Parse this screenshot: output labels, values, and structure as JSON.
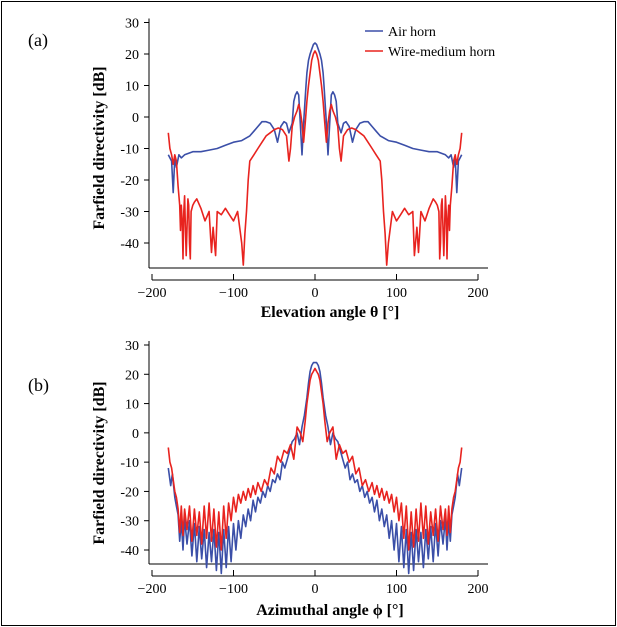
{
  "figure": {
    "frame": true
  },
  "chart_data": [
    {
      "type": "line",
      "panel_label": "(a)",
      "xlabel": "Elevation angle θ [°]",
      "ylabel": "Farfield directivity [dB]",
      "xlim": [
        -200,
        200
      ],
      "ylim": [
        -48,
        30
      ],
      "xticks": [
        -200,
        -100,
        0,
        100,
        200
      ],
      "yticks": [
        30,
        20,
        10,
        0,
        -10,
        -20,
        -30,
        -40
      ],
      "grid": false,
      "legend": {
        "position": "top-right"
      },
      "series": [
        {
          "name": "Air horn",
          "color": "#3b4fa8",
          "x": [
            -180,
            -176,
            -174,
            -172,
            -170,
            -167,
            -164,
            -160,
            -150,
            -140,
            -130,
            -120,
            -110,
            -100,
            -90,
            -80,
            -75,
            -70,
            -65,
            -60,
            -55,
            -50,
            -46,
            -42,
            -38,
            -35,
            -32,
            -28,
            -26,
            -24,
            -22,
            -20,
            -18,
            -16,
            -14,
            -13,
            -12,
            -11,
            -10,
            -8,
            -6,
            -4,
            -2,
            0,
            2,
            4,
            6,
            8,
            10,
            11,
            12,
            13,
            14,
            16,
            18,
            20,
            22,
            24,
            26,
            28,
            32,
            35,
            38,
            42,
            46,
            50,
            55,
            60,
            65,
            70,
            75,
            80,
            90,
            100,
            110,
            120,
            130,
            140,
            150,
            160,
            164,
            167,
            170,
            172,
            174,
            176,
            180
          ],
          "y": [
            -12,
            -14,
            -24,
            -13,
            -16,
            -12,
            -13,
            -12,
            -11,
            -11,
            -10.5,
            -10,
            -9,
            -8,
            -7.5,
            -6,
            -4.5,
            -3,
            -1.5,
            -1.5,
            -2,
            -4,
            -8,
            -3,
            -1.5,
            -2,
            -5,
            -2,
            5,
            7,
            8,
            7,
            -2,
            -12,
            -2,
            2,
            6,
            10,
            14,
            18,
            20,
            21.5,
            23,
            23.5,
            23,
            21.5,
            20,
            18,
            14,
            10,
            6,
            2,
            -2,
            -12,
            -2,
            7,
            8,
            7,
            5,
            -2,
            -5,
            -2,
            -1.5,
            -3,
            -8,
            -4,
            -2,
            -1.5,
            -1.5,
            -3,
            -4.5,
            -6,
            -7.5,
            -8,
            -9,
            -10,
            -10.5,
            -11,
            -11,
            -12,
            -13,
            -12,
            -16,
            -13,
            -24,
            -14,
            -12
          ]
        },
        {
          "name": "Wire-medium horn",
          "color": "#e8231f",
          "x": [
            -180,
            -178,
            -176,
            -174,
            -172,
            -170,
            -168,
            -166,
            -165,
            -164,
            -163,
            -162,
            -161,
            -160,
            -159,
            -158,
            -156,
            -155,
            -154,
            -153,
            -152,
            -150,
            -148,
            -145,
            -140,
            -135,
            -130,
            -127,
            -125,
            -122,
            -120,
            -115,
            -110,
            -105,
            -100,
            -95,
            -90,
            -88,
            -86,
            -84,
            -82,
            -80,
            -75,
            -70,
            -65,
            -60,
            -55,
            -50,
            -45,
            -40,
            -35,
            -32,
            -30,
            -28,
            -25,
            -22,
            -20,
            -18,
            -16,
            -14,
            -12,
            -10,
            -8,
            -6,
            -4,
            -2,
            0,
            2,
            4,
            6,
            8,
            10,
            12,
            14,
            16,
            18,
            20,
            22,
            25,
            28,
            30,
            32,
            35,
            40,
            45,
            50,
            55,
            60,
            65,
            70,
            75,
            80,
            82,
            84,
            86,
            88,
            90,
            95,
            100,
            105,
            110,
            115,
            120,
            122,
            125,
            127,
            130,
            135,
            140,
            145,
            148,
            150,
            152,
            153,
            154,
            155,
            156,
            158,
            159,
            160,
            161,
            162,
            163,
            164,
            165,
            166,
            168,
            170,
            172,
            174,
            176,
            178,
            180
          ],
          "y": [
            -5,
            -10,
            -12,
            -15,
            -12,
            -14,
            -22,
            -28,
            -36,
            -28,
            -33,
            -45,
            -30,
            -25,
            -35,
            -44,
            -26,
            -28,
            -40,
            -45,
            -30,
            -28,
            -27,
            -26,
            -29,
            -33,
            -30,
            -43,
            -35,
            -44,
            -30,
            -31,
            -29,
            -31,
            -33,
            -30,
            -40,
            -47,
            -37,
            -30,
            -20,
            -14,
            -12,
            -10,
            -8,
            -6,
            -5,
            -4,
            -3.5,
            -4,
            -6,
            -14,
            -10,
            -3,
            0,
            2,
            4,
            2,
            -2,
            -8,
            -2,
            5,
            10,
            14,
            18,
            20,
            21,
            20,
            18,
            14,
            10,
            5,
            -2,
            -8,
            -2,
            2,
            4,
            2,
            0,
            -3,
            -10,
            -14,
            -6,
            -4,
            -3.5,
            -4,
            -5,
            -6,
            -8,
            -10,
            -12,
            -14,
            -20,
            -30,
            -37,
            -47,
            -40,
            -30,
            -33,
            -31,
            -29,
            -31,
            -30,
            -44,
            -35,
            -43,
            -30,
            -33,
            -29,
            -26,
            -27,
            -28,
            -30,
            -45,
            -40,
            -28,
            -26,
            -44,
            -35,
            -25,
            -30,
            -45,
            -33,
            -28,
            -36,
            -28,
            -22,
            -14,
            -12,
            -15,
            -12,
            -10,
            -5
          ]
        }
      ]
    },
    {
      "type": "line",
      "panel_label": "(b)",
      "xlabel": "Azimuthal angle ϕ [°]",
      "ylabel": "Farfield directivity [dB]",
      "xlim": [
        -200,
        200
      ],
      "ylim": [
        -48,
        30
      ],
      "xticks": [
        -200,
        -100,
        0,
        100,
        200
      ],
      "yticks": [
        30,
        20,
        10,
        0,
        -10,
        -20,
        -30,
        -40
      ],
      "grid": false,
      "series": [
        {
          "name": "Air horn",
          "color": "#3b4fa8",
          "x": [
            -180,
            -177,
            -175,
            -172,
            -170,
            -168,
            -166,
            -164,
            -162,
            -160,
            -157,
            -154,
            -151,
            -148,
            -145,
            -142,
            -139,
            -136,
            -133,
            -130,
            -127,
            -124,
            -121,
            -118,
            -115,
            -112,
            -109,
            -106,
            -103,
            -100,
            -97,
            -94,
            -91,
            -88,
            -85,
            -82,
            -79,
            -76,
            -73,
            -70,
            -67,
            -64,
            -61,
            -58,
            -55,
            -52,
            -49,
            -46,
            -43,
            -40,
            -37,
            -34,
            -31,
            -28,
            -25,
            -22,
            -19,
            -16,
            -13,
            -10,
            -8,
            -6,
            -4,
            -2,
            0,
            2,
            4,
            6,
            8,
            10,
            13,
            16,
            19,
            22,
            25,
            28,
            31,
            34,
            37,
            40,
            43,
            46,
            49,
            52,
            55,
            58,
            61,
            64,
            67,
            70,
            73,
            76,
            79,
            82,
            85,
            88,
            91,
            94,
            97,
            100,
            103,
            106,
            109,
            112,
            115,
            118,
            121,
            124,
            127,
            130,
            133,
            136,
            139,
            142,
            145,
            148,
            151,
            154,
            157,
            160,
            162,
            164,
            166,
            168,
            170,
            172,
            175,
            177,
            180
          ],
          "y": [
            -12,
            -18,
            -14,
            -22,
            -25,
            -28,
            -37,
            -30,
            -40,
            -29,
            -38,
            -30,
            -42,
            -31,
            -44,
            -32,
            -43,
            -33,
            -46,
            -34,
            -44,
            -33,
            -47,
            -34,
            -48,
            -33,
            -46,
            -32,
            -44,
            -31,
            -40,
            -30,
            -36,
            -28,
            -32,
            -26,
            -30,
            -23,
            -27,
            -22,
            -24,
            -20,
            -22,
            -18,
            -20,
            -16,
            -17,
            -14,
            -16,
            -10,
            -12,
            -9,
            -6,
            -3,
            -2,
            0,
            -4,
            2,
            6,
            12,
            17,
            21,
            23,
            24,
            24,
            24,
            23,
            21,
            17,
            12,
            6,
            2,
            -4,
            0,
            -2,
            -3,
            -6,
            -9,
            -12,
            -10,
            -16,
            -14,
            -17,
            -16,
            -20,
            -18,
            -22,
            -20,
            -24,
            -22,
            -27,
            -23,
            -30,
            -26,
            -32,
            -28,
            -36,
            -30,
            -40,
            -31,
            -44,
            -32,
            -46,
            -33,
            -48,
            -34,
            -47,
            -33,
            -44,
            -34,
            -46,
            -33,
            -43,
            -32,
            -44,
            -31,
            -42,
            -30,
            -38,
            -29,
            -40,
            -30,
            -37,
            -28,
            -25,
            -22,
            -14,
            -18,
            -12
          ]
        },
        {
          "name": "Wire-medium horn",
          "color": "#e8231f",
          "x": [
            -180,
            -178,
            -176,
            -174,
            -172,
            -170,
            -168,
            -166,
            -164,
            -162,
            -160,
            -157,
            -154,
            -151,
            -148,
            -145,
            -142,
            -139,
            -136,
            -133,
            -130,
            -127,
            -124,
            -121,
            -118,
            -115,
            -112,
            -109,
            -106,
            -103,
            -100,
            -97,
            -94,
            -91,
            -88,
            -85,
            -82,
            -79,
            -76,
            -73,
            -70,
            -66,
            -62,
            -58,
            -54,
            -50,
            -46,
            -42,
            -38,
            -34,
            -30,
            -26,
            -22,
            -18,
            -15,
            -12,
            -10,
            -8,
            -6,
            -4,
            -2,
            0,
            2,
            4,
            6,
            8,
            10,
            12,
            15,
            18,
            22,
            26,
            30,
            34,
            38,
            42,
            46,
            50,
            54,
            58,
            62,
            66,
            70,
            73,
            76,
            79,
            82,
            85,
            88,
            91,
            94,
            97,
            100,
            103,
            106,
            109,
            112,
            115,
            118,
            121,
            124,
            127,
            130,
            133,
            136,
            139,
            142,
            145,
            148,
            151,
            154,
            157,
            160,
            162,
            164,
            166,
            168,
            170,
            172,
            174,
            176,
            178,
            180
          ],
          "y": [
            -5,
            -10,
            -12,
            -16,
            -20,
            -22,
            -26,
            -34,
            -25,
            -35,
            -26,
            -33,
            -25,
            -37,
            -26,
            -35,
            -27,
            -38,
            -25,
            -36,
            -24,
            -37,
            -26,
            -39,
            -27,
            -40,
            -25,
            -36,
            -24,
            -30,
            -22,
            -27,
            -21,
            -24,
            -20,
            -23,
            -19,
            -22,
            -18,
            -21,
            -17,
            -20,
            -16,
            -18,
            -12,
            -14,
            -8,
            -10,
            -6,
            -7,
            -4,
            -9,
            2,
            0,
            -3,
            4,
            10,
            14,
            18,
            20,
            21,
            22,
            21,
            20,
            18,
            14,
            10,
            4,
            -3,
            0,
            2,
            -9,
            -4,
            -7,
            -6,
            -10,
            -8,
            -14,
            -12,
            -18,
            -16,
            -20,
            -17,
            -21,
            -18,
            -22,
            -19,
            -23,
            -20,
            -24,
            -21,
            -27,
            -22,
            -30,
            -24,
            -36,
            -25,
            -40,
            -27,
            -39,
            -26,
            -37,
            -24,
            -36,
            -25,
            -38,
            -27,
            -35,
            -26,
            -37,
            -25,
            -33,
            -26,
            -35,
            -25,
            -34,
            -26,
            -22,
            -20,
            -16,
            -12,
            -10,
            -5
          ]
        }
      ]
    }
  ]
}
